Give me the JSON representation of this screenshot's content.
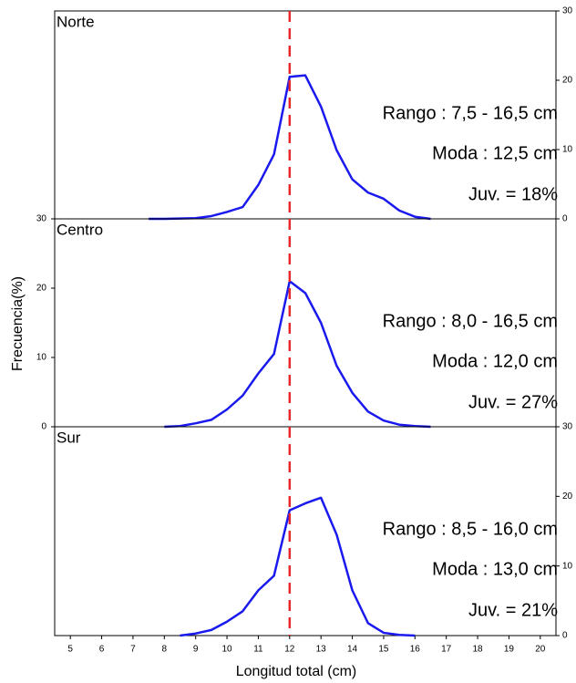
{
  "x_axis_label": "Longitud total (cm)",
  "y_axis_label": "Frecuencia(%)",
  "reference_line": {
    "x": 12,
    "color": "#e8282b"
  },
  "chart_data": [
    {
      "type": "line",
      "title": "Norte",
      "x": [
        7.5,
        8,
        8.5,
        9,
        9.5,
        10,
        10.5,
        11,
        11.5,
        12,
        12.5,
        13,
        13.5,
        14,
        14.5,
        15,
        15.5,
        16,
        16.5
      ],
      "series": [
        {
          "color": "#1a1aee",
          "values": [
            0,
            0,
            0.05,
            0.1,
            0.4,
            1.0,
            1.7,
            4.9,
            9.3,
            20.5,
            20.7,
            16.2,
            9.9,
            5.7,
            3.8,
            2.9,
            1.2,
            0.3,
            0
          ]
        }
      ],
      "xlim": [
        4.5,
        20.5
      ],
      "ylim": [
        0,
        30
      ],
      "yticks": [
        0,
        10,
        20,
        30
      ],
      "y_axis_side": "right",
      "annotations": [
        "Rango : 7,5 - 16,5 cm",
        "Moda : 12,5 cm",
        "Juv. = 18%"
      ]
    },
    {
      "type": "line",
      "title": "Centro",
      "x": [
        8,
        8.5,
        9,
        9.5,
        10,
        10.5,
        11,
        11.5,
        12,
        12.5,
        13,
        13.5,
        14,
        14.5,
        15,
        15.5,
        16,
        16.5
      ],
      "series": [
        {
          "color": "#1a1aee",
          "values": [
            0,
            0.1,
            0.5,
            1.0,
            2.5,
            4.5,
            7.7,
            10.5,
            21,
            19.3,
            15,
            8.8,
            4.9,
            2.2,
            0.9,
            0.3,
            0.1,
            0
          ]
        }
      ],
      "xlim": [
        4.5,
        20.5
      ],
      "ylim": [
        0,
        30
      ],
      "yticks": [
        0,
        10,
        20,
        30
      ],
      "y_axis_side": "left",
      "annotations": [
        "Rango : 8,0 - 16,5 cm",
        "Moda : 12,0 cm",
        "Juv. = 27%"
      ]
    },
    {
      "type": "line",
      "title": "Sur",
      "x": [
        8.5,
        9,
        9.5,
        10,
        10.5,
        11,
        11.5,
        12,
        12.5,
        13,
        13.5,
        14,
        14.5,
        15,
        15.5,
        16
      ],
      "series": [
        {
          "color": "#1a1aee",
          "values": [
            0,
            0.3,
            0.8,
            2.0,
            3.5,
            6.5,
            8.6,
            18,
            19,
            19.8,
            14.5,
            6.5,
            1.8,
            0.4,
            0.1,
            0
          ]
        }
      ],
      "xlim": [
        4.5,
        20.5
      ],
      "ylim": [
        0,
        30
      ],
      "yticks": [
        0,
        10,
        20,
        30
      ],
      "y_axis_side": "right",
      "xticks": [
        5,
        6,
        7,
        8,
        9,
        10,
        11,
        12,
        13,
        14,
        15,
        16,
        17,
        18,
        19,
        20
      ],
      "annotations": [
        "Rango : 8,5 - 16,0 cm",
        "Moda : 13,0 cm",
        "Juv. = 21%"
      ]
    }
  ]
}
